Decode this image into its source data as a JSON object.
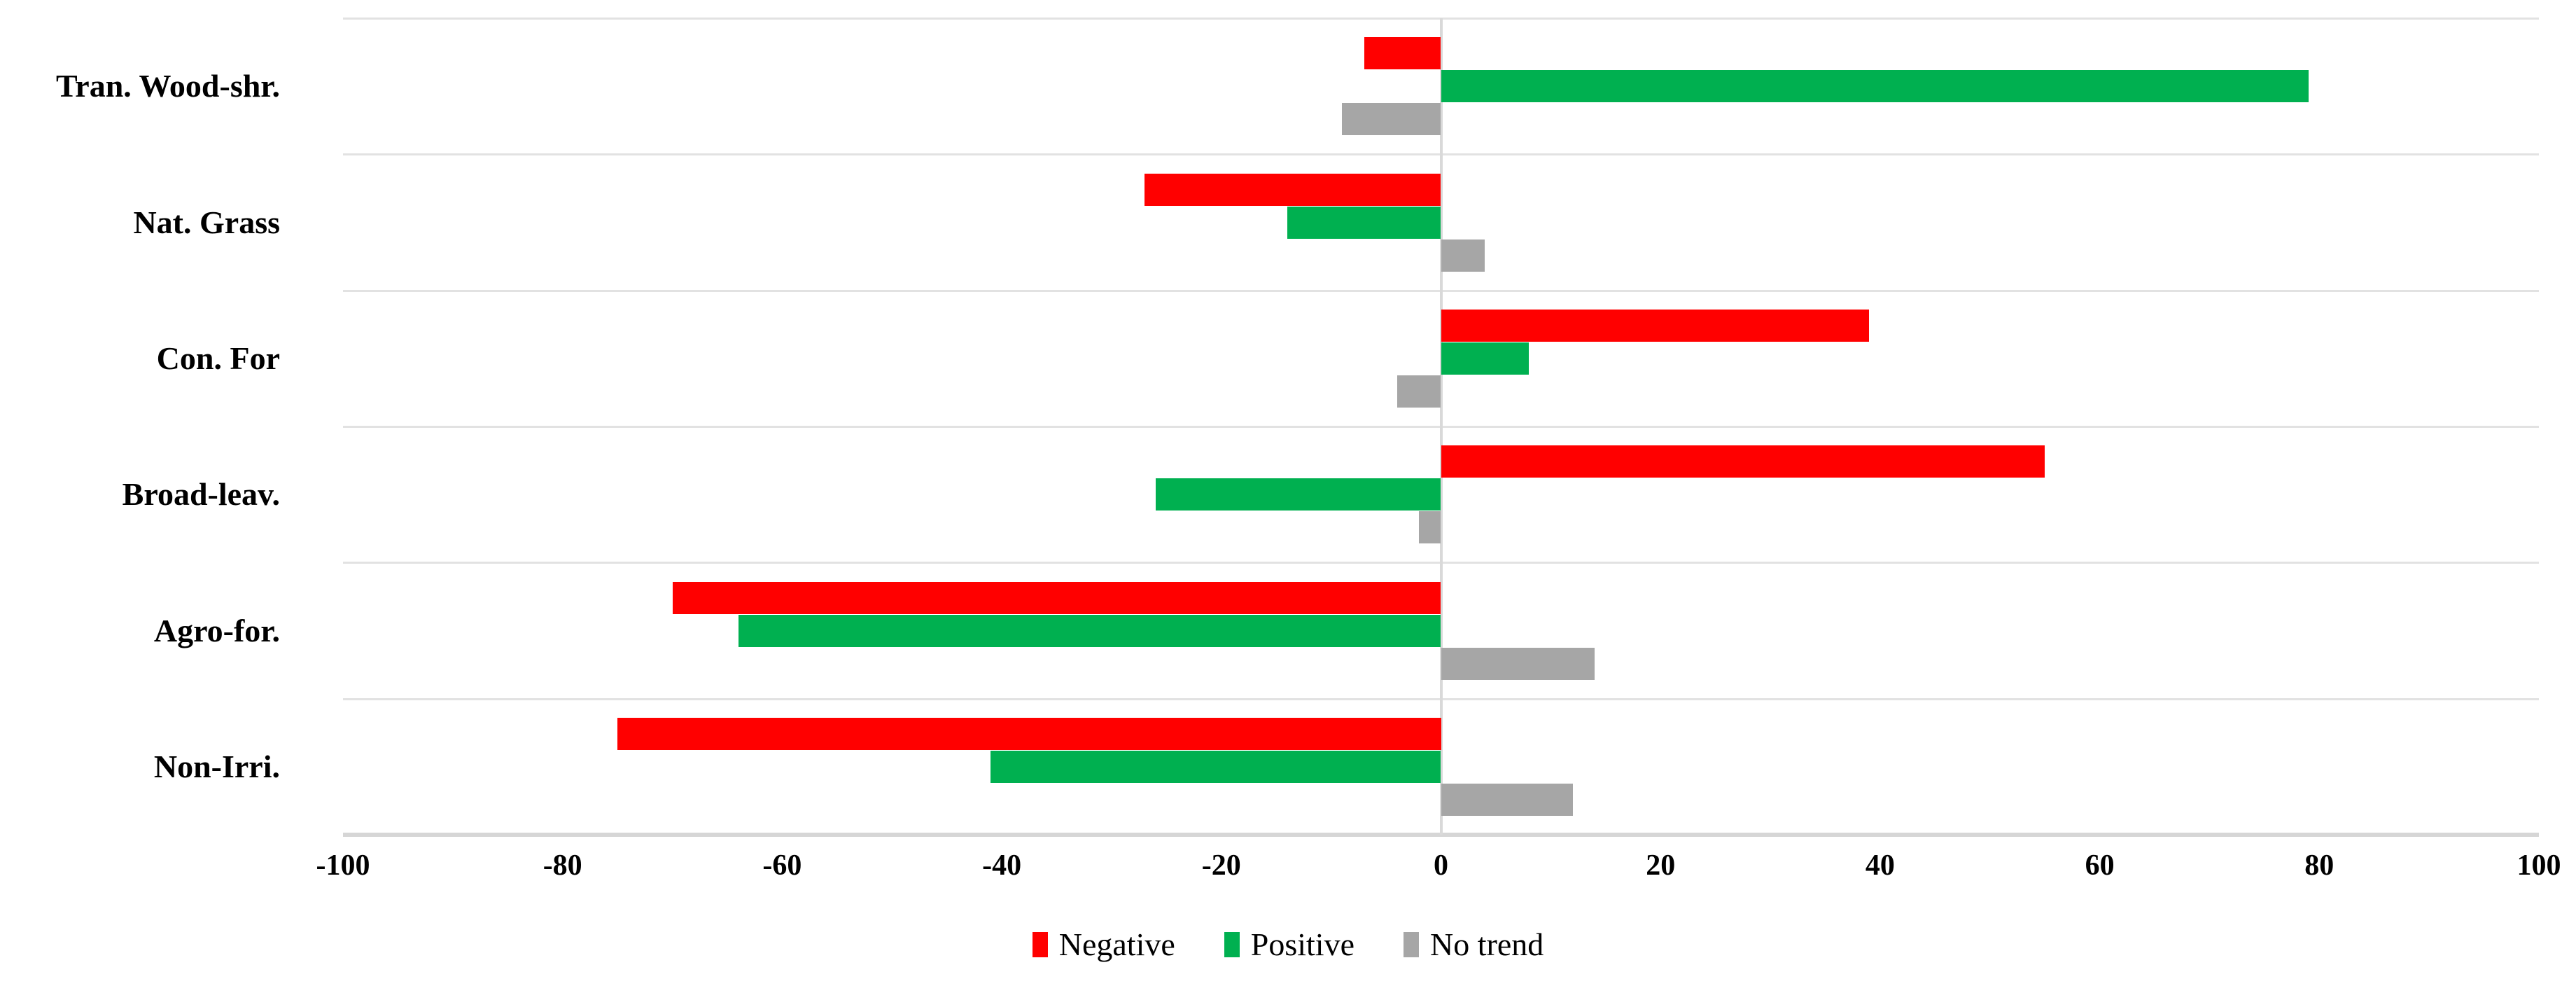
{
  "chart_data": {
    "type": "bar",
    "orientation": "horizontal",
    "title": "",
    "xlabel": "",
    "ylabel": "",
    "categories": [
      "Tran. Wood-shr.",
      "Nat. Grass",
      "Con. For",
      "Broad-leav.",
      "Agro-for.",
      "Non-Irri."
    ],
    "series": [
      {
        "name": "Negative",
        "color": "#ff0000",
        "values": [
          -7,
          -27,
          39,
          55,
          -70,
          -75
        ]
      },
      {
        "name": "Positive",
        "color": "#00b050",
        "values": [
          79,
          -14,
          8,
          -26,
          -64,
          -41
        ]
      },
      {
        "name": "No trend",
        "color": "#a6a6a6",
        "values": [
          -9,
          4,
          -4,
          -2,
          14,
          12
        ]
      }
    ],
    "xlim": [
      -100,
      100
    ],
    "x_ticks": [
      -100,
      -80,
      -60,
      -40,
      -20,
      0,
      20,
      40,
      60,
      80,
      100
    ],
    "grid": "row-separators-only",
    "legend_position": "bottom-center",
    "axis_line_color": "#d9d9d9",
    "background": "#ffffff"
  }
}
